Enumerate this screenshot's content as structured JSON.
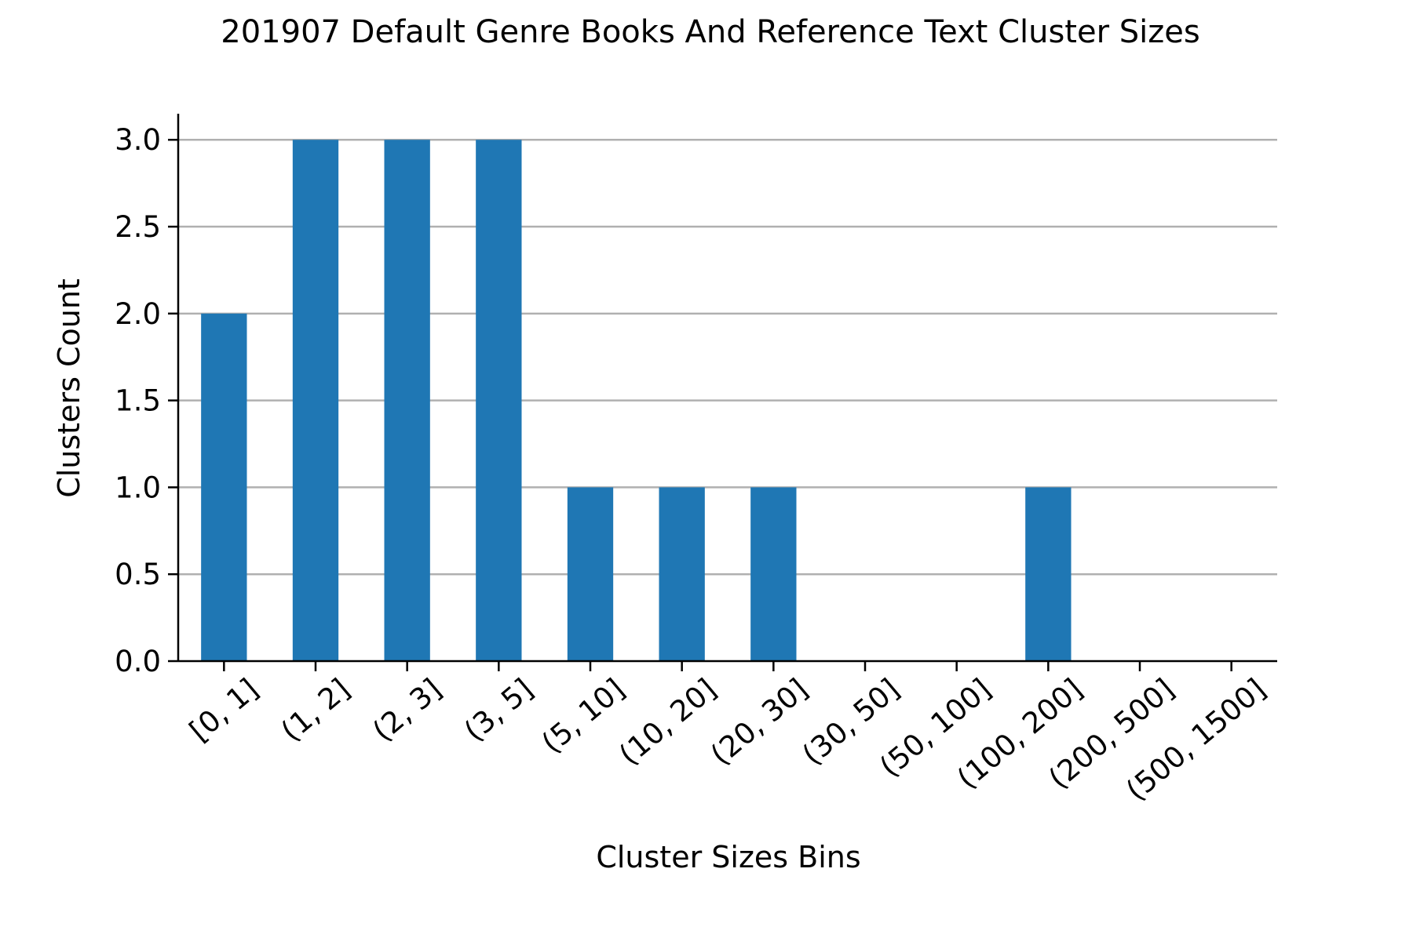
{
  "chart_data": {
    "type": "bar",
    "title": "201907 Default Genre Books And Reference Text Cluster Sizes",
    "xlabel": "Cluster Sizes Bins",
    "ylabel": "Clusters Count",
    "categories": [
      "[0, 1]",
      "(1, 2]",
      "(2, 3]",
      "(3, 5]",
      "(5, 10]",
      "(10, 20]",
      "(20, 30]",
      "(30, 50]",
      "(50, 100]",
      "(100, 200]",
      "(200, 500]",
      "(500, 1500]"
    ],
    "values": [
      2,
      3,
      3,
      3,
      1,
      1,
      1,
      0,
      0,
      1,
      0,
      0
    ],
    "ylim": [
      0,
      3.15
    ],
    "yticks": [
      "0.0",
      "0.5",
      "1.0",
      "1.5",
      "2.0",
      "2.5",
      "3.0"
    ],
    "grid": "horizontal",
    "bar_color": "#1f77b4",
    "grid_color": "#b0b0b0"
  }
}
